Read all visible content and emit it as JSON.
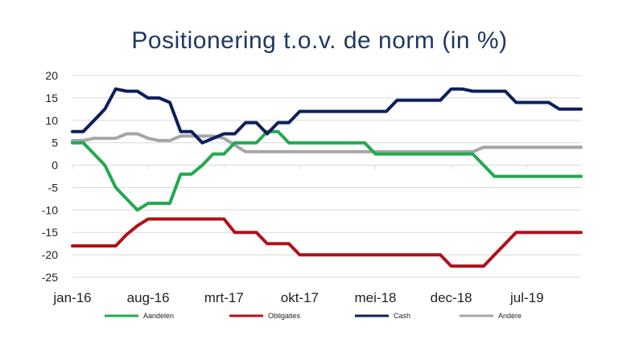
{
  "chart_data": {
    "type": "line",
    "title": "Positionering t.o.v. de norm (in %)",
    "xlabel": "",
    "ylabel": "",
    "ylim": [
      -25,
      20
    ],
    "yticks": [
      20,
      15,
      10,
      5,
      0,
      -5,
      -10,
      -15,
      -20,
      -25
    ],
    "xticks": [
      "jan-16",
      "aug-16",
      "mrt-17",
      "okt-17",
      "mei-18",
      "dec-18",
      "jul-19"
    ],
    "x": [
      "2016-01",
      "2016-02",
      "2016-03",
      "2016-04",
      "2016-05",
      "2016-06",
      "2016-07",
      "2016-08",
      "2016-09",
      "2016-10",
      "2016-11",
      "2016-12",
      "2017-01",
      "2017-02",
      "2017-03",
      "2017-04",
      "2017-05",
      "2017-06",
      "2017-07",
      "2017-08",
      "2017-09",
      "2017-10",
      "2017-11",
      "2017-12",
      "2018-01",
      "2018-02",
      "2018-03",
      "2018-04",
      "2018-05",
      "2018-06",
      "2018-07",
      "2018-08",
      "2018-09",
      "2018-10",
      "2018-11",
      "2018-12",
      "2019-01",
      "2019-02",
      "2019-03",
      "2019-04",
      "2019-05",
      "2019-06",
      "2019-07",
      "2019-08",
      "2019-09",
      "2019-10",
      "2019-11",
      "2019-12"
    ],
    "legend_position": "bottom",
    "grid": true,
    "series": [
      {
        "name": "Aandelen",
        "color": "#22a94f",
        "values": [
          5,
          5,
          2.5,
          0,
          -5,
          -7.5,
          -10,
          -8.5,
          -8.5,
          -8.5,
          -2,
          -2,
          0,
          2.5,
          2.5,
          5,
          5,
          5,
          7.5,
          7.5,
          5,
          5,
          5,
          5,
          5,
          5,
          5,
          5,
          2.5,
          2.5,
          2.5,
          2.5,
          2.5,
          2.5,
          2.5,
          2.5,
          2.5,
          2.5,
          0,
          -2.5,
          -2.5,
          -2.5,
          -2.5,
          -2.5,
          -2.5,
          -2.5,
          -2.5,
          -2.5
        ]
      },
      {
        "name": "Obligaties",
        "color": "#b3101a",
        "values": [
          -18,
          -18,
          -18,
          -18,
          -18,
          -15.5,
          -13.5,
          -12,
          -12,
          -12,
          -12,
          -12,
          -12,
          -12,
          -12,
          -15,
          -15,
          -15,
          -17.5,
          -17.5,
          -17.5,
          -20,
          -20,
          -20,
          -20,
          -20,
          -20,
          -20,
          -20,
          -20,
          -20,
          -20,
          -20,
          -20,
          -20,
          -22.5,
          -22.5,
          -22.5,
          -22.5,
          -20,
          -17.5,
          -15,
          -15,
          -15,
          -15,
          -15,
          -15,
          -15
        ]
      },
      {
        "name": "Cash",
        "color": "#0d1f5c",
        "values": [
          7.5,
          7.5,
          10,
          12.5,
          17,
          16.5,
          16.5,
          15,
          15,
          14,
          7.5,
          7.5,
          5,
          6,
          7,
          7,
          9.5,
          9.5,
          7,
          9.5,
          9.5,
          12,
          12,
          12,
          12,
          12,
          12,
          12,
          12,
          12,
          14.5,
          14.5,
          14.5,
          14.5,
          14.5,
          17,
          17,
          16.5,
          16.5,
          16.5,
          16.5,
          14,
          14,
          14,
          14,
          12.5,
          12.5,
          12.5
        ]
      },
      {
        "name": "Andere",
        "color": "#a6a6a6",
        "values": [
          5.5,
          5.5,
          6,
          6,
          6,
          7,
          7,
          6,
          5.5,
          5.5,
          6.5,
          6.5,
          6.5,
          6.5,
          6,
          4.5,
          3,
          3,
          3,
          3,
          3,
          3,
          3,
          3,
          3,
          3,
          3,
          3,
          3,
          3,
          3,
          3,
          3,
          3,
          3,
          3,
          3,
          3,
          4,
          4,
          4,
          4,
          4,
          4,
          4,
          4,
          4,
          4
        ]
      }
    ]
  }
}
